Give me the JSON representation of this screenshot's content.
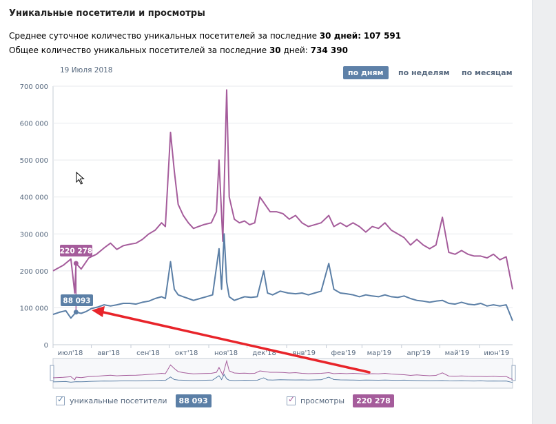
{
  "title": "Уникальные посетители и просмотры",
  "stats": {
    "avg_prefix": "Среднее суточное количество уникальных посетителей за последние ",
    "avg_days": "30 дней:",
    "avg_value": "107 591",
    "total_prefix": "Общее количество уникальных посетителей за последние ",
    "total_days": "30",
    "total_mid": " дней:",
    "total_value": "734 390"
  },
  "date_label": "19 Июля 2018",
  "periods": {
    "days": "по дням",
    "weeks": "по неделям",
    "months": "по месяцам",
    "active": "days"
  },
  "tooltips": {
    "views": "220 278",
    "visitors": "88 093"
  },
  "legend": {
    "visitors_label": "уникальные посетители",
    "visitors_value": "88 093",
    "views_label": "просмотры",
    "views_value": "220 278"
  },
  "colors": {
    "visitors": "#5b7fa6",
    "views": "#a55c9b",
    "arrow": "#e8242a",
    "grid": "#e7eaee",
    "axis_text": "#55677d"
  },
  "chart_data": {
    "type": "line",
    "y_ticks": [
      "700 000",
      "600 000",
      "500 000",
      "400 000",
      "300 000",
      "200 000",
      "100 000",
      "0"
    ],
    "ylim": [
      0,
      700000
    ],
    "x_labels": [
      "июл'18",
      "авг'18",
      "сен'18",
      "окт'18",
      "ноя'18",
      "дек'18",
      "янв'19",
      "фев'19",
      "мар'19",
      "апр'19",
      "май'19",
      "июн'19"
    ],
    "x_range_days": [
      0,
      360
    ],
    "x_label_days": [
      0,
      30,
      61,
      91,
      122,
      152,
      183,
      214,
      242,
      273,
      303,
      334
    ],
    "series": [
      {
        "name": "просмотры",
        "points": [
          [
            0,
            200000
          ],
          [
            8,
            215000
          ],
          [
            14,
            232000
          ],
          [
            17,
            140000
          ],
          [
            18,
            220278
          ],
          [
            22,
            205000
          ],
          [
            28,
            235000
          ],
          [
            34,
            245000
          ],
          [
            40,
            262000
          ],
          [
            45,
            275000
          ],
          [
            50,
            258000
          ],
          [
            55,
            268000
          ],
          [
            60,
            272000
          ],
          [
            65,
            275000
          ],
          [
            70,
            285000
          ],
          [
            75,
            300000
          ],
          [
            80,
            310000
          ],
          [
            85,
            330000
          ],
          [
            88,
            320000
          ],
          [
            92,
            575000
          ],
          [
            95,
            470000
          ],
          [
            98,
            380000
          ],
          [
            102,
            350000
          ],
          [
            106,
            330000
          ],
          [
            110,
            315000
          ],
          [
            114,
            320000
          ],
          [
            118,
            325000
          ],
          [
            124,
            330000
          ],
          [
            128,
            360000
          ],
          [
            130,
            500000
          ],
          [
            133,
            280000
          ],
          [
            136,
            690000
          ],
          [
            138,
            400000
          ],
          [
            142,
            340000
          ],
          [
            146,
            330000
          ],
          [
            150,
            335000
          ],
          [
            154,
            325000
          ],
          [
            158,
            330000
          ],
          [
            162,
            400000
          ],
          [
            166,
            380000
          ],
          [
            170,
            360000
          ],
          [
            175,
            360000
          ],
          [
            180,
            355000
          ],
          [
            185,
            340000
          ],
          [
            190,
            350000
          ],
          [
            195,
            330000
          ],
          [
            200,
            320000
          ],
          [
            205,
            325000
          ],
          [
            210,
            330000
          ],
          [
            216,
            350000
          ],
          [
            220,
            320000
          ],
          [
            225,
            330000
          ],
          [
            230,
            320000
          ],
          [
            235,
            330000
          ],
          [
            240,
            320000
          ],
          [
            245,
            305000
          ],
          [
            250,
            320000
          ],
          [
            255,
            315000
          ],
          [
            260,
            330000
          ],
          [
            265,
            310000
          ],
          [
            270,
            300000
          ],
          [
            275,
            290000
          ],
          [
            280,
            270000
          ],
          [
            285,
            285000
          ],
          [
            290,
            270000
          ],
          [
            295,
            260000
          ],
          [
            300,
            270000
          ],
          [
            305,
            345000
          ],
          [
            310,
            250000
          ],
          [
            315,
            245000
          ],
          [
            320,
            255000
          ],
          [
            325,
            245000
          ],
          [
            330,
            240000
          ],
          [
            335,
            240000
          ],
          [
            340,
            235000
          ],
          [
            345,
            245000
          ],
          [
            350,
            230000
          ],
          [
            355,
            238000
          ],
          [
            360,
            150000
          ]
        ]
      },
      {
        "name": "уникальные посетители",
        "points": [
          [
            0,
            82000
          ],
          [
            5,
            88000
          ],
          [
            10,
            92000
          ],
          [
            14,
            72000
          ],
          [
            18,
            88093
          ],
          [
            22,
            85000
          ],
          [
            26,
            90000
          ],
          [
            30,
            98000
          ],
          [
            35,
            102000
          ],
          [
            40,
            108000
          ],
          [
            45,
            105000
          ],
          [
            50,
            108000
          ],
          [
            55,
            112000
          ],
          [
            60,
            112000
          ],
          [
            65,
            110000
          ],
          [
            70,
            115000
          ],
          [
            75,
            118000
          ],
          [
            80,
            125000
          ],
          [
            85,
            130000
          ],
          [
            88,
            125000
          ],
          [
            92,
            225000
          ],
          [
            95,
            150000
          ],
          [
            98,
            135000
          ],
          [
            102,
            130000
          ],
          [
            106,
            125000
          ],
          [
            110,
            120000
          ],
          [
            115,
            125000
          ],
          [
            120,
            130000
          ],
          [
            125,
            135000
          ],
          [
            130,
            260000
          ],
          [
            132,
            150000
          ],
          [
            134,
            300000
          ],
          [
            136,
            170000
          ],
          [
            138,
            130000
          ],
          [
            142,
            120000
          ],
          [
            146,
            125000
          ],
          [
            150,
            130000
          ],
          [
            155,
            128000
          ],
          [
            160,
            130000
          ],
          [
            165,
            200000
          ],
          [
            168,
            140000
          ],
          [
            172,
            135000
          ],
          [
            178,
            145000
          ],
          [
            184,
            140000
          ],
          [
            190,
            138000
          ],
          [
            195,
            140000
          ],
          [
            200,
            135000
          ],
          [
            205,
            140000
          ],
          [
            210,
            145000
          ],
          [
            216,
            220000
          ],
          [
            220,
            150000
          ],
          [
            225,
            140000
          ],
          [
            230,
            138000
          ],
          [
            235,
            135000
          ],
          [
            240,
            130000
          ],
          [
            245,
            135000
          ],
          [
            250,
            132000
          ],
          [
            255,
            130000
          ],
          [
            260,
            135000
          ],
          [
            265,
            130000
          ],
          [
            270,
            128000
          ],
          [
            275,
            132000
          ],
          [
            280,
            125000
          ],
          [
            285,
            120000
          ],
          [
            290,
            118000
          ],
          [
            295,
            115000
          ],
          [
            300,
            118000
          ],
          [
            305,
            120000
          ],
          [
            310,
            112000
          ],
          [
            315,
            110000
          ],
          [
            320,
            115000
          ],
          [
            325,
            110000
          ],
          [
            330,
            108000
          ],
          [
            335,
            112000
          ],
          [
            340,
            105000
          ],
          [
            345,
            108000
          ],
          [
            350,
            105000
          ],
          [
            355,
            108000
          ],
          [
            360,
            65000
          ]
        ]
      }
    ]
  }
}
